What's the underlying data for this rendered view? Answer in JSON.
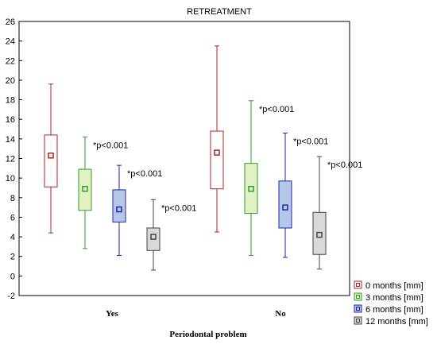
{
  "chart_data": {
    "type": "boxplot",
    "title": "RETREATMENT",
    "xlabel": "Periodontal problem",
    "ylabel": "",
    "ylim": [
      -2,
      26
    ],
    "y_ticks": [
      -2,
      0,
      2,
      4,
      6,
      8,
      10,
      12,
      14,
      16,
      18,
      20,
      22,
      24,
      26
    ],
    "grid": false,
    "legend_position": "bottom-right",
    "categories": [
      "Yes",
      "No"
    ],
    "series": [
      {
        "name": "0 months [mm]",
        "stroke": "#b22222",
        "fill": "#ffffff",
        "boxes": [
          {
            "min": 4.4,
            "q1": 9.1,
            "median": 12.3,
            "q3": 14.4,
            "max": 19.6,
            "annotation": ""
          },
          {
            "min": 4.5,
            "q1": 8.9,
            "median": 12.6,
            "q3": 14.8,
            "max": 23.5,
            "annotation": ""
          }
        ]
      },
      {
        "name": "3 months [mm]",
        "stroke": "#2e9e2e",
        "fill": "#e2f0c4",
        "boxes": [
          {
            "min": 2.8,
            "q1": 6.7,
            "median": 8.9,
            "q3": 10.9,
            "max": 14.2,
            "annotation": "*p<0.001"
          },
          {
            "min": 2.1,
            "q1": 6.4,
            "median": 8.9,
            "q3": 11.5,
            "max": 17.9,
            "annotation": "*p<0.001"
          }
        ]
      },
      {
        "name": "6 months [mm]",
        "stroke": "#2323a8",
        "fill": "#b4c8ea",
        "boxes": [
          {
            "min": 2.1,
            "q1": 5.5,
            "median": 6.8,
            "q3": 8.8,
            "max": 11.3,
            "annotation": "*p<0.001"
          },
          {
            "min": 1.9,
            "q1": 4.9,
            "median": 7.0,
            "q3": 9.7,
            "max": 14.6,
            "annotation": "*p<0.001"
          }
        ]
      },
      {
        "name": "12 months [mm]",
        "stroke": "#444444",
        "fill": "#d9d9d9",
        "boxes": [
          {
            "min": 0.6,
            "q1": 2.6,
            "median": 4.0,
            "q3": 4.9,
            "max": 7.8,
            "annotation": "*p<0.001"
          },
          {
            "min": 0.7,
            "q1": 2.2,
            "median": 4.2,
            "q3": 6.5,
            "max": 12.2,
            "annotation": "*p<0.001"
          }
        ]
      }
    ]
  }
}
